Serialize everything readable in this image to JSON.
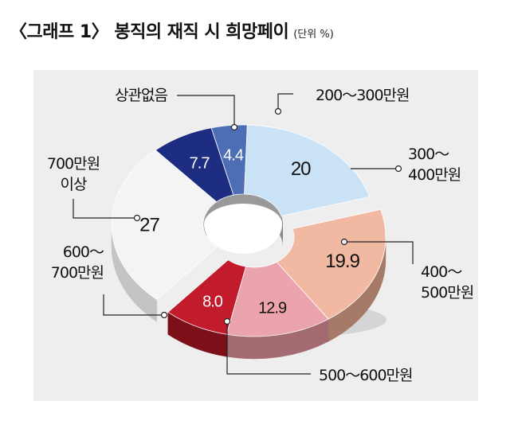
{
  "header": {
    "title": "〈그래프 1〉 봉직의 재직 시 희망페이",
    "unit": "(단위 %)"
  },
  "chart_data": {
    "type": "pie",
    "variant": "donut-3d",
    "legend": "callout-labels",
    "slices": [
      {
        "label": "200～300만원",
        "value": 4.4,
        "value_label": "4.4",
        "color": "#4d6db5",
        "side": "#25396b"
      },
      {
        "label": "300～400만원",
        "value": 20,
        "value_label": "20",
        "color": "#c9e2f5",
        "side": "#8fa3b3"
      },
      {
        "label": "400～500만원",
        "value": 19.9,
        "value_label": "19.9",
        "color": "#f2b9a2",
        "side": "#a57a68"
      },
      {
        "label": "500～600만원",
        "value": 12.9,
        "value_label": "12.9",
        "color": "#eba3ad",
        "side": "#a36a72"
      },
      {
        "label": "600～700만원",
        "value": 8.0,
        "value_label": "8.0",
        "color": "#c21b2c",
        "side": "#7d0f19"
      },
      {
        "label": "700만원 이상",
        "value": 27,
        "value_label": "27",
        "color": "#f4f4f4",
        "side": "#c4c4c4"
      },
      {
        "label": "상관없음",
        "value": 7.7,
        "value_label": "7.7",
        "color": "#1c2d82",
        "side": "#0d1748"
      }
    ]
  }
}
